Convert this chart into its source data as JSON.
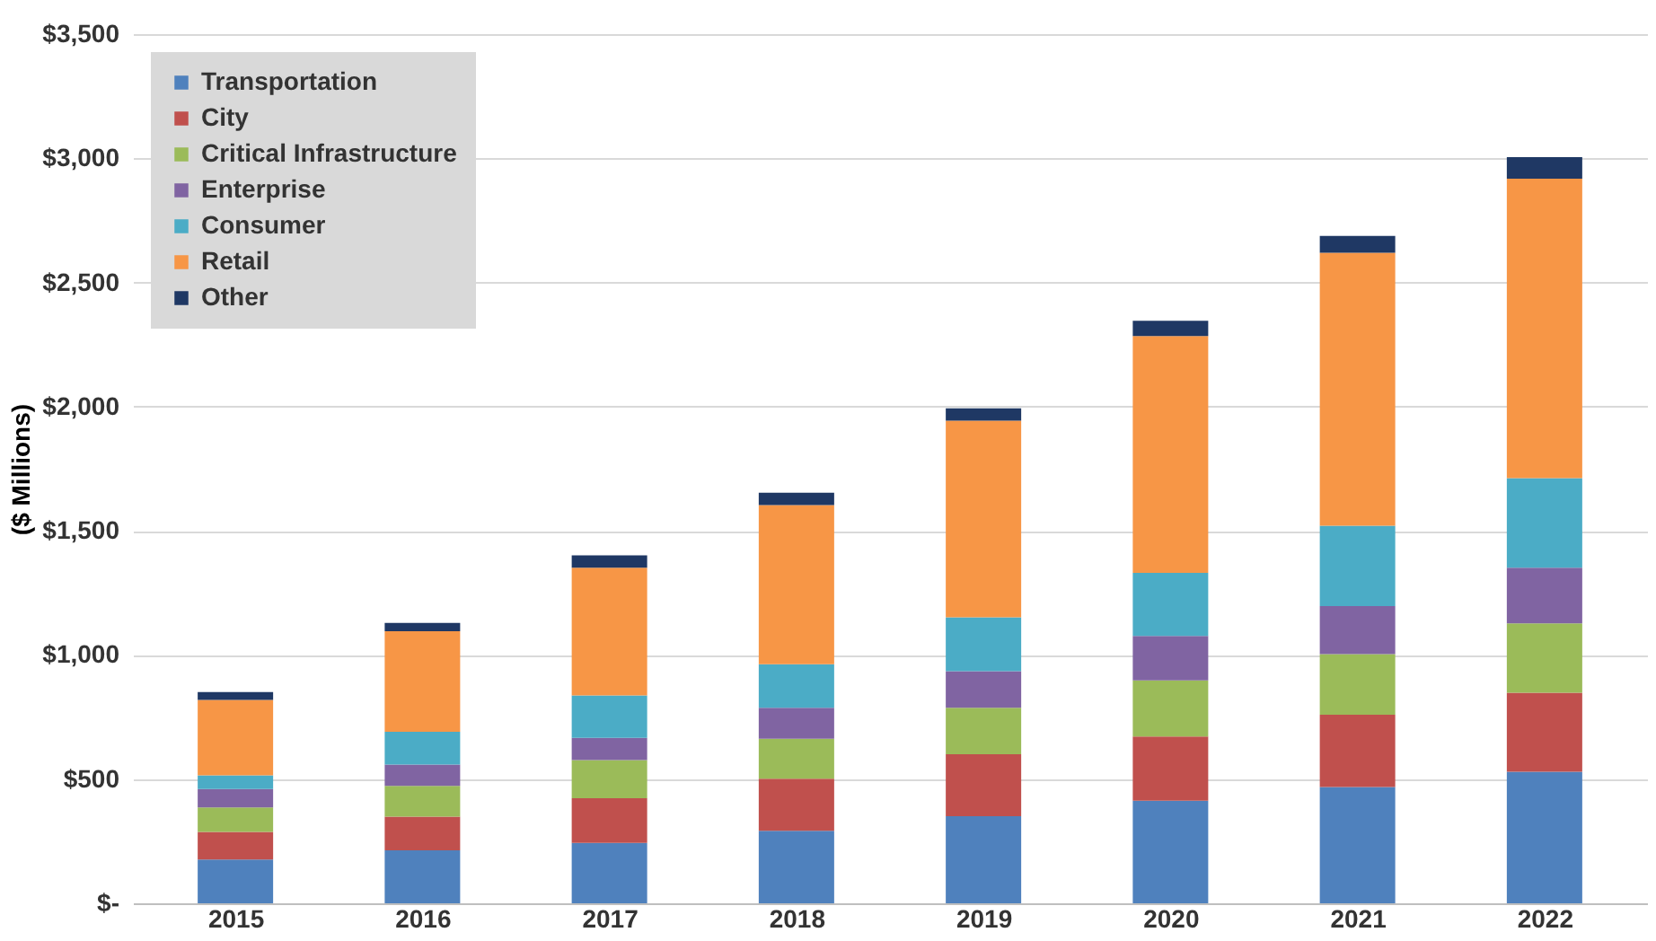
{
  "chart_data": {
    "type": "bar",
    "stacked": true,
    "ylabel": "($ Millions)",
    "categories": [
      "2015",
      "2016",
      "2017",
      "2018",
      "2019",
      "2020",
      "2021",
      "2022"
    ],
    "series": [
      {
        "name": "Transportation",
        "color": "#4f81bd",
        "values": [
          176,
          213,
          243,
          292,
          351,
          413,
          468,
          530
        ]
      },
      {
        "name": "City",
        "color": "#c0504d",
        "values": [
          111,
          136,
          180,
          210,
          249,
          259,
          291,
          318
        ]
      },
      {
        "name": "Critical Infrastructure",
        "color": "#9bbb59",
        "values": [
          99,
          124,
          154,
          161,
          187,
          226,
          244,
          279
        ]
      },
      {
        "name": "Enterprise",
        "color": "#8064a2",
        "values": [
          74,
          86,
          89,
          124,
          148,
          179,
          194,
          224
        ]
      },
      {
        "name": "Consumer",
        "color": "#4bacc6",
        "values": [
          55,
          132,
          171,
          176,
          217,
          254,
          323,
          361
        ]
      },
      {
        "name": "Retail",
        "color": "#f79646",
        "values": [
          304,
          405,
          514,
          641,
          791,
          953,
          1100,
          1206
        ]
      },
      {
        "name": "Other",
        "color": "#1f3864",
        "values": [
          32,
          33,
          50,
          49,
          50,
          62,
          67,
          87
        ]
      }
    ],
    "ylim": [
      0,
      3500
    ],
    "yticks": [
      {
        "value": 0,
        "label": "$-"
      },
      {
        "value": 500,
        "label": "$500"
      },
      {
        "value": 1000,
        "label": "$1,000"
      },
      {
        "value": 1500,
        "label": "$1,500"
      },
      {
        "value": 2000,
        "label": "$2,000"
      },
      {
        "value": 2500,
        "label": "$2,500"
      },
      {
        "value": 3000,
        "label": "$3,000"
      },
      {
        "value": 3500,
        "label": "$3,500"
      }
    ],
    "grid": "y",
    "legend": "top left"
  }
}
